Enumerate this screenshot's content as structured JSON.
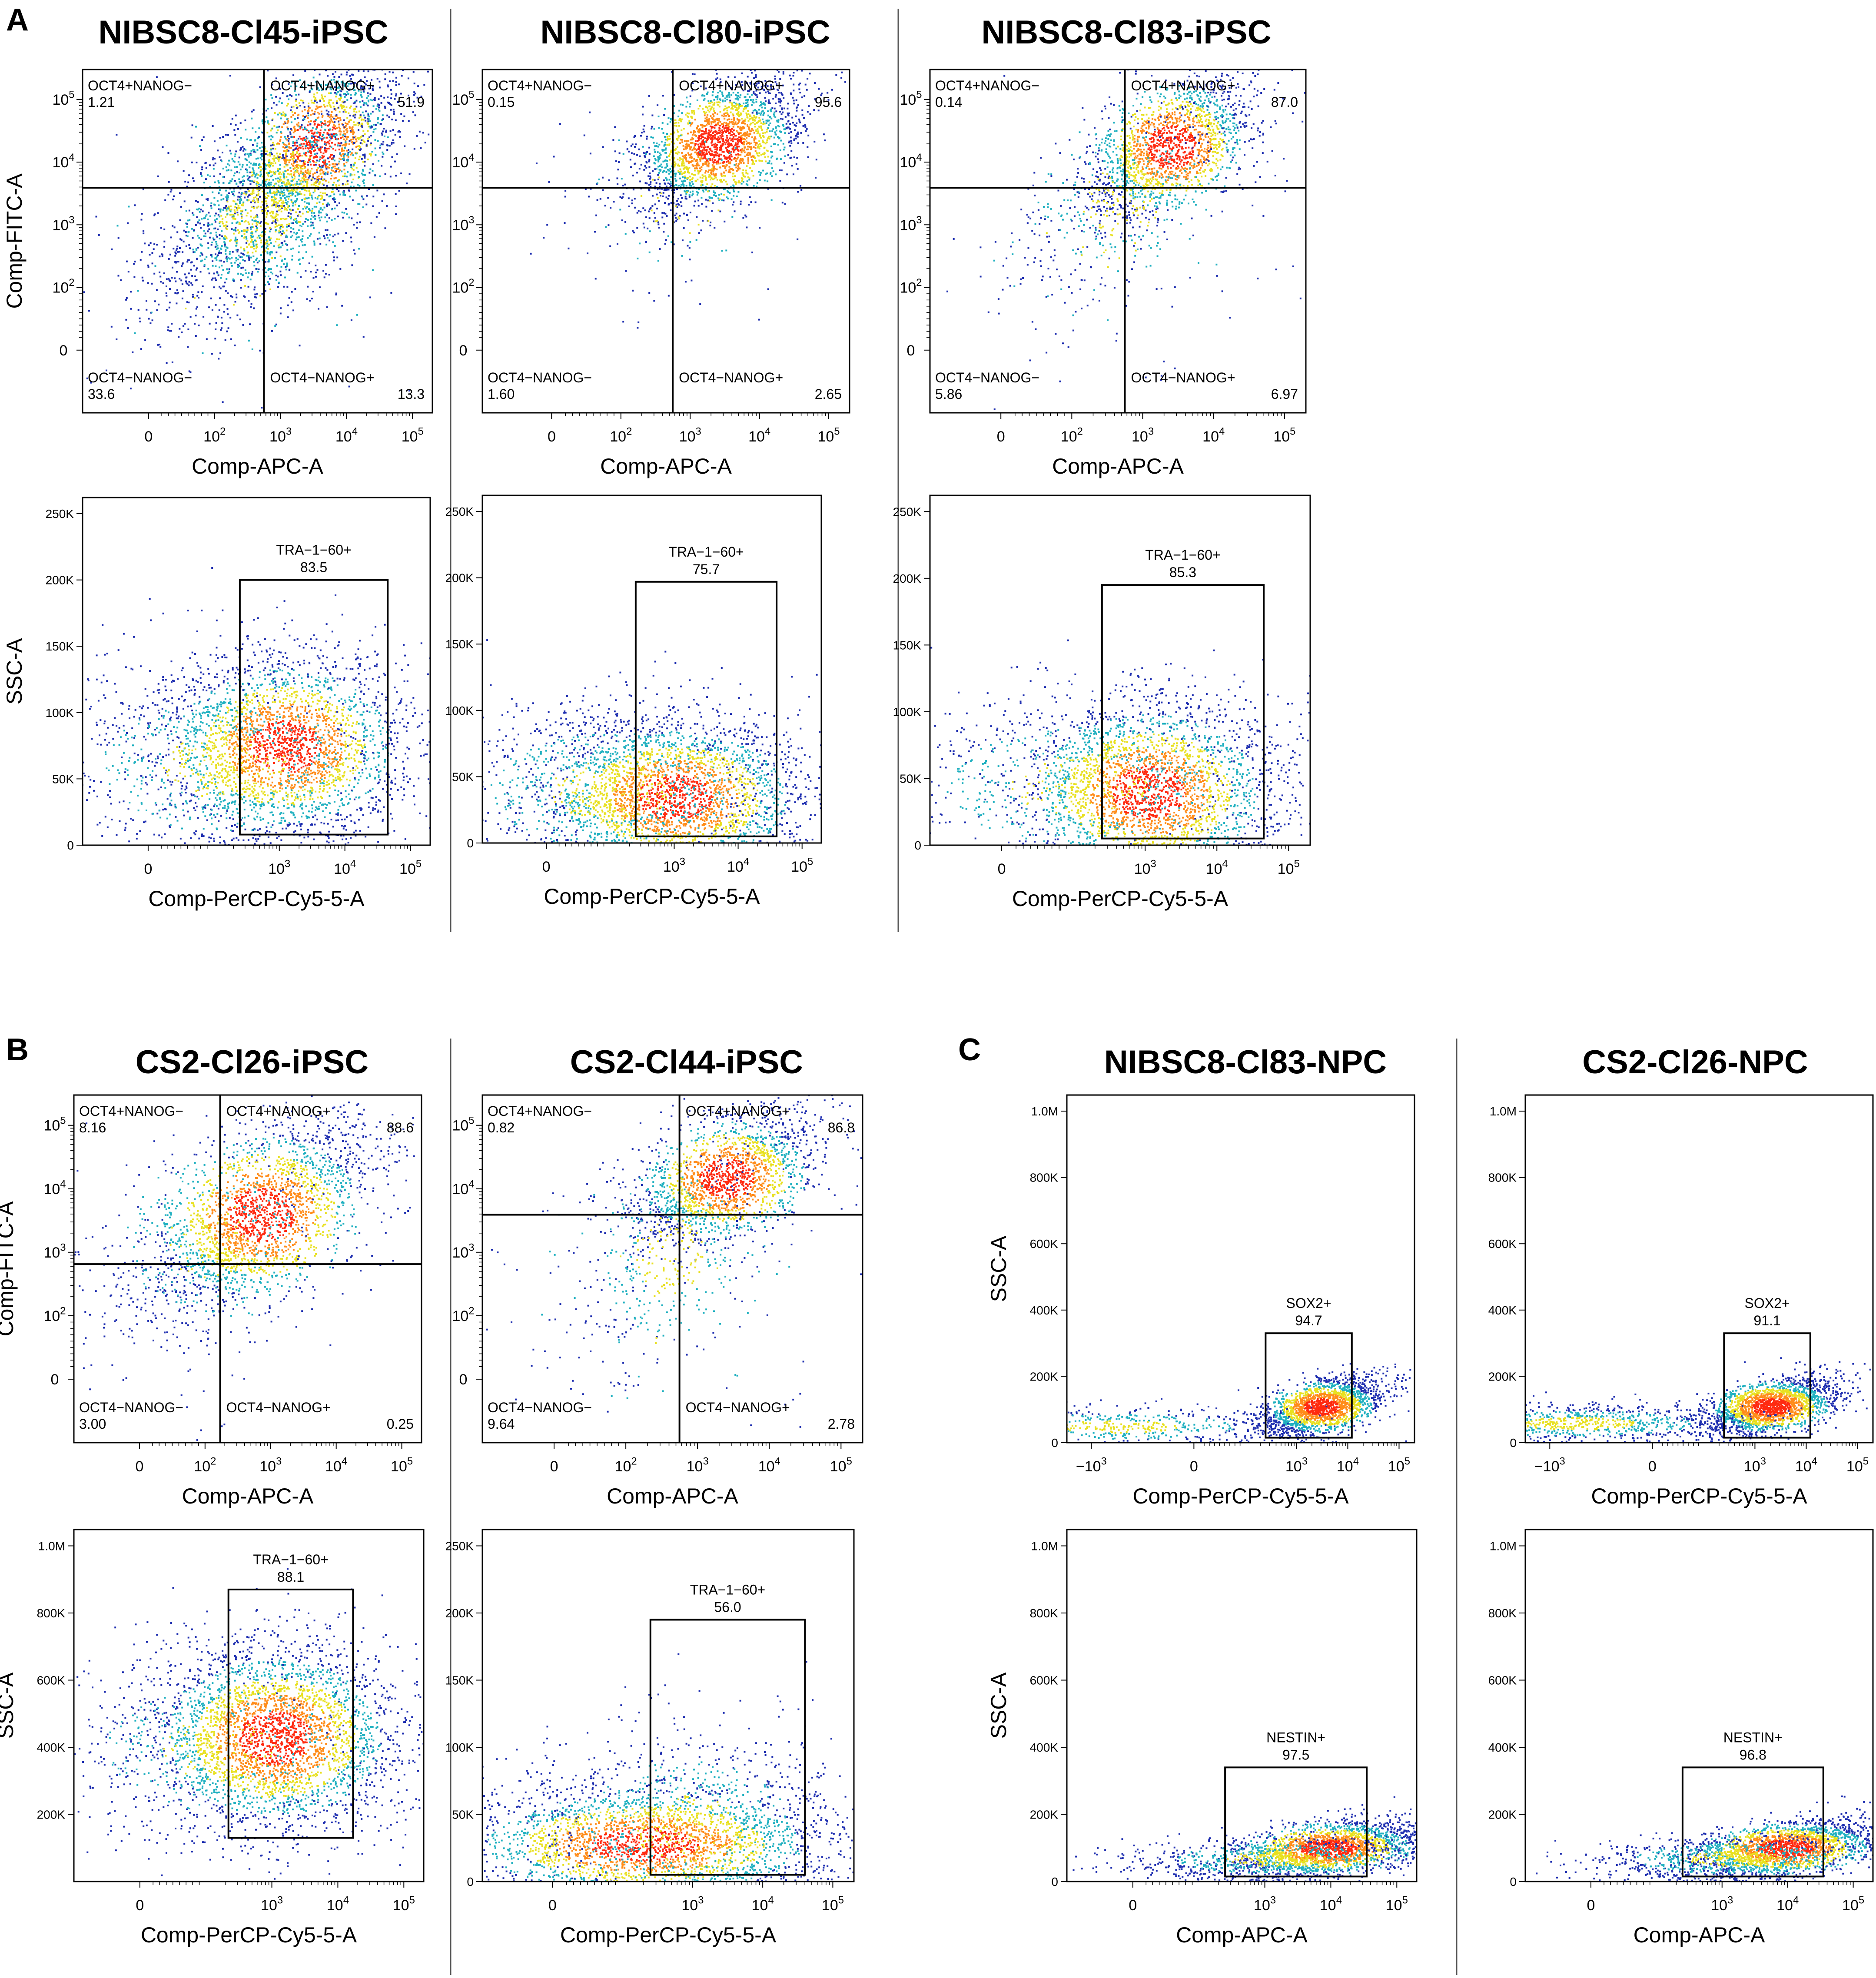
{
  "figure": {
    "panel_letters": [
      "A",
      "B",
      "C"
    ],
    "colors": {
      "density_low": "#1f2fb0",
      "density_mid": "#20b0c0",
      "density_high1": "#e8e020",
      "density_high2": "#ff2a10",
      "frame": "#000000"
    }
  },
  "chart_data": [
    {
      "id": "A1q",
      "type": "scatter",
      "column_title": "NIBSC8-Cl45-iPSC",
      "xlabel": "Comp-APC-A",
      "ylabel": "Comp-FITC-A",
      "x_scale": "biexponential",
      "y_scale": "biexponential",
      "xlim": [
        -100,
        200000
      ],
      "ylim": [
        -100,
        300000
      ],
      "x_ticks": [
        "0",
        "10^2",
        "10^3",
        "10^4",
        "10^5"
      ],
      "y_ticks": [
        "0",
        "10^2",
        "10^3",
        "10^4",
        "10^5"
      ],
      "gate_x": 560,
      "gate_y": 3900,
      "quadrants": [
        {
          "label": "OCT4+NANOG−",
          "value": "1.21",
          "pos": "top-left"
        },
        {
          "label": "OCT4+NANOG+",
          "value": "51.9",
          "pos": "top-right"
        },
        {
          "label": "OCT4−NANOG−",
          "value": "33.6",
          "pos": "bottom-left"
        },
        {
          "label": "OCT4−NANOG+",
          "value": "13.3",
          "pos": "bottom-right"
        }
      ],
      "clusters": [
        {
          "x": 3500,
          "y": 20000,
          "n": 1400,
          "sx": 0.22,
          "sy": 0.22,
          "rho": 0.55
        },
        {
          "x": 400,
          "y": 1200,
          "n": 1100,
          "sx": 0.28,
          "sy": 0.28,
          "rho": 0.5
        },
        {
          "x": 1200,
          "y": 4000,
          "n": 900,
          "sx": 0.32,
          "sy": 0.32,
          "rho": 0.6
        },
        {
          "x": 200,
          "y": 300,
          "n": 60,
          "sx": 0.6,
          "sy": 0.6,
          "rho": 0.0
        }
      ]
    },
    {
      "id": "A2q",
      "type": "scatter",
      "column_title": "NIBSC8-Cl80-iPSC",
      "xlabel": "Comp-APC-A",
      "ylabel": "",
      "x_scale": "biexponential",
      "y_scale": "biexponential",
      "xlim": [
        -100,
        200000
      ],
      "ylim": [
        -100,
        300000
      ],
      "x_ticks": [
        "0",
        "10^2",
        "10^3",
        "10^4",
        "10^5"
      ],
      "y_ticks": [
        "0",
        "10^2",
        "10^3",
        "10^4",
        "10^5"
      ],
      "gate_x": 560,
      "gate_y": 3900,
      "quadrants": [
        {
          "label": "OCT4+NANOG−",
          "value": "0.15",
          "pos": "top-left"
        },
        {
          "label": "OCT4+NANOG+",
          "value": "95.6",
          "pos": "top-right"
        },
        {
          "label": "OCT4−NANOG−",
          "value": "1.60",
          "pos": "bottom-left"
        },
        {
          "label": "OCT4−NANOG+",
          "value": "2.65",
          "pos": "bottom-right"
        }
      ],
      "clusters": [
        {
          "x": 2500,
          "y": 20000,
          "n": 2200,
          "sx": 0.2,
          "sy": 0.18,
          "rho": 0.5
        },
        {
          "x": 800,
          "y": 3000,
          "n": 120,
          "sx": 0.35,
          "sy": 0.35,
          "rho": 0.3
        }
      ]
    },
    {
      "id": "A3q",
      "type": "scatter",
      "column_title": "NIBSC8-Cl83-iPSC",
      "xlabel": "Comp-APC-A",
      "ylabel": "",
      "x_scale": "biexponential",
      "y_scale": "biexponential",
      "xlim": [
        -100,
        200000
      ],
      "ylim": [
        -100,
        300000
      ],
      "x_ticks": [
        "0",
        "10^2",
        "10^3",
        "10^4",
        "10^5"
      ],
      "y_ticks": [
        "0",
        "10^2",
        "10^3",
        "10^4",
        "10^5"
      ],
      "gate_x": 560,
      "gate_y": 3900,
      "quadrants": [
        {
          "label": "OCT4+NANOG−",
          "value": "0.14",
          "pos": "top-left"
        },
        {
          "label": "OCT4+NANOG+",
          "value": "87.0",
          "pos": "top-right"
        },
        {
          "label": "OCT4−NANOG−",
          "value": "5.86",
          "pos": "bottom-left"
        },
        {
          "label": "OCT4−NANOG+",
          "value": "6.97",
          "pos": "bottom-right"
        }
      ],
      "clusters": [
        {
          "x": 2500,
          "y": 18000,
          "n": 1800,
          "sx": 0.2,
          "sy": 0.2,
          "rho": 0.55
        },
        {
          "x": 500,
          "y": 2500,
          "n": 400,
          "sx": 0.3,
          "sy": 0.3,
          "rho": 0.6
        },
        {
          "x": 300,
          "y": 800,
          "n": 80,
          "sx": 0.45,
          "sy": 0.45,
          "rho": 0.2
        }
      ]
    },
    {
      "id": "A1g",
      "type": "scatter",
      "column_title": "NIBSC8-Cl45-iPSC",
      "xlabel": "Comp-PerCP-Cy5-5-A",
      "ylabel": "SSC-A",
      "x_scale": "biexponential",
      "y_scale": "linear",
      "xlim": [
        -100,
        200000
      ],
      "ylim": [
        0,
        262144
      ],
      "x_ticks": [
        "0",
        "10^3",
        "10^4",
        "10^5"
      ],
      "y_ticks": [
        "0",
        "50K",
        "100K",
        "150K",
        "200K",
        "250K"
      ],
      "y_tick_values": [
        0,
        50000,
        100000,
        150000,
        200000,
        250000
      ],
      "gate_box": {
        "label": "TRA−1−60+",
        "value": "83.5",
        "x0": 250,
        "x1": 45000,
        "y0": 8000,
        "y1": 200000
      },
      "clusters": [
        {
          "x": 1200,
          "y": 75000,
          "n": 2600,
          "sx": 0.32,
          "sy": 35000,
          "rho": 0
        },
        {
          "x": 150,
          "y": 60000,
          "n": 900,
          "sx": 0.5,
          "sy": 40000,
          "rho": 0
        }
      ]
    },
    {
      "id": "A2g",
      "type": "scatter",
      "column_title": "NIBSC8-Cl80-iPSC",
      "xlabel": "Comp-PerCP-Cy5-5-A",
      "ylabel": "",
      "x_scale": "biexponential",
      "y_scale": "linear",
      "xlim": [
        -100,
        200000
      ],
      "ylim": [
        0,
        262144
      ],
      "x_ticks": [
        "0",
        "10^3",
        "10^4",
        "10^5"
      ],
      "y_ticks": [
        "0",
        "50K",
        "100K",
        "150K",
        "200K",
        "250K"
      ],
      "y_tick_values": [
        0,
        50000,
        100000,
        150000,
        200000,
        250000
      ],
      "gate_box": {
        "label": "TRA−1−60+",
        "value": "75.7",
        "x0": 250,
        "x1": 40000,
        "y0": 5000,
        "y1": 197000
      },
      "clusters": [
        {
          "x": 1000,
          "y": 35000,
          "n": 2600,
          "sx": 0.35,
          "sy": 30000,
          "rho": 0
        },
        {
          "x": 100,
          "y": 40000,
          "n": 1000,
          "sx": 0.5,
          "sy": 35000,
          "rho": 0
        }
      ]
    },
    {
      "id": "A3g",
      "type": "scatter",
      "column_title": "NIBSC8-Cl83-iPSC",
      "xlabel": "Comp-PerCP-Cy5-5-A",
      "ylabel": "",
      "x_scale": "biexponential",
      "y_scale": "linear",
      "xlim": [
        -100,
        200000
      ],
      "ylim": [
        0,
        262144
      ],
      "x_ticks": [
        "0",
        "10^3",
        "10^4",
        "10^5"
      ],
      "y_ticks": [
        "0",
        "50K",
        "100K",
        "150K",
        "200K",
        "250K"
      ],
      "y_tick_values": [
        0,
        50000,
        100000,
        150000,
        200000,
        250000
      ],
      "gate_box": {
        "label": "TRA−1−60+",
        "value": "85.3",
        "x0": 250,
        "x1": 45000,
        "y0": 5000,
        "y1": 195000
      },
      "clusters": [
        {
          "x": 1100,
          "y": 40000,
          "n": 2700,
          "sx": 0.3,
          "sy": 35000,
          "rho": 0
        },
        {
          "x": 120,
          "y": 45000,
          "n": 800,
          "sx": 0.5,
          "sy": 35000,
          "rho": 0
        }
      ]
    },
    {
      "id": "B1q",
      "type": "scatter",
      "column_title": "CS2-Cl26-iPSC",
      "xlabel": "Comp-APC-A",
      "ylabel": "Comp-FITC-A",
      "x_scale": "biexponential",
      "y_scale": "biexponential",
      "xlim": [
        -100,
        200000
      ],
      "ylim": [
        -100,
        300000
      ],
      "x_ticks": [
        "0",
        "10^2",
        "10^3",
        "10^4",
        "10^5"
      ],
      "y_ticks": [
        "0",
        "10^2",
        "10^3",
        "10^4",
        "10^5"
      ],
      "gate_x": 170,
      "gate_y": 650,
      "quadrants": [
        {
          "label": "OCT4+NANOG−",
          "value": "8.16",
          "pos": "top-left"
        },
        {
          "label": "OCT4+NANOG+",
          "value": "88.6",
          "pos": "top-right"
        },
        {
          "label": "OCT4−NANOG−",
          "value": "3.00",
          "pos": "bottom-left"
        },
        {
          "label": "OCT4−NANOG+",
          "value": "0.25",
          "pos": "bottom-right"
        }
      ],
      "clusters": [
        {
          "x": 700,
          "y": 4000,
          "n": 2200,
          "sx": 0.3,
          "sy": 0.25,
          "rho": 0.6
        },
        {
          "x": 120,
          "y": 1500,
          "n": 400,
          "sx": 0.35,
          "sy": 0.35,
          "rho": 0.3
        }
      ]
    },
    {
      "id": "B2q",
      "type": "scatter",
      "column_title": "CS2-Cl44-iPSC",
      "xlabel": "Comp-APC-A",
      "ylabel": "",
      "x_scale": "biexponential",
      "y_scale": "biexponential",
      "xlim": [
        -100,
        200000
      ],
      "ylim": [
        -100,
        300000
      ],
      "x_ticks": [
        "0",
        "10^2",
        "10^3",
        "10^4",
        "10^5"
      ],
      "y_ticks": [
        "0",
        "10^2",
        "10^3",
        "10^4",
        "10^5"
      ],
      "gate_x": 560,
      "gate_y": 3900,
      "quadrants": [
        {
          "label": "OCT4+NANOG−",
          "value": "0.82",
          "pos": "top-left"
        },
        {
          "label": "OCT4+NANOG+",
          "value": "86.8",
          "pos": "top-right"
        },
        {
          "label": "OCT4−NANOG−",
          "value": "9.64",
          "pos": "bottom-left"
        },
        {
          "label": "OCT4−NANOG+",
          "value": "2.78",
          "pos": "bottom-right"
        }
      ],
      "clusters": [
        {
          "x": 2500,
          "y": 15000,
          "n": 1800,
          "sx": 0.22,
          "sy": 0.18,
          "rho": 0.5
        },
        {
          "x": 400,
          "y": 1000,
          "n": 450,
          "sx": 0.25,
          "sy": 0.35,
          "rho": 0.5
        },
        {
          "x": 300,
          "y": 300,
          "n": 60,
          "sx": 0.5,
          "sy": 0.5,
          "rho": 0
        }
      ]
    },
    {
      "id": "B1g",
      "type": "scatter",
      "column_title": "CS2-Cl26-iPSC",
      "xlabel": "Comp-PerCP-Cy5-5-A",
      "ylabel": "SSC-A",
      "x_scale": "biexponential",
      "y_scale": "linear",
      "xlim": [
        -100,
        200000
      ],
      "ylim": [
        0,
        1048576
      ],
      "x_ticks": [
        "0",
        "10^3",
        "10^4",
        "10^5"
      ],
      "y_ticks": [
        "200K",
        "400K",
        "600K",
        "800K",
        "1.0M"
      ],
      "y_tick_values": [
        200000,
        400000,
        600000,
        800000,
        1000000
      ],
      "gate_box": {
        "label": "TRA−1−60+",
        "value": "88.1",
        "x0": 220,
        "x1": 17000,
        "y0": 130000,
        "y1": 870000
      },
      "clusters": [
        {
          "x": 1100,
          "y": 430000,
          "n": 3200,
          "sx": 0.32,
          "sy": 140000,
          "rho": 0
        },
        {
          "x": 150,
          "y": 400000,
          "n": 500,
          "sx": 0.45,
          "sy": 150000,
          "rho": 0
        }
      ]
    },
    {
      "id": "B2g",
      "type": "scatter",
      "column_title": "CS2-Cl44-iPSC",
      "xlabel": "Comp-PerCP-Cy5-5-A",
      "ylabel": "",
      "x_scale": "biexponential",
      "y_scale": "linear",
      "xlim": [
        -100,
        200000
      ],
      "ylim": [
        0,
        262144
      ],
      "x_ticks": [
        "0",
        "10^3",
        "10^4",
        "10^5"
      ],
      "y_ticks": [
        "0",
        "50K",
        "100K",
        "150K",
        "200K",
        "250K"
      ],
      "y_tick_values": [
        0,
        50000,
        100000,
        150000,
        200000,
        250000
      ],
      "gate_box": {
        "label": "TRA−1−60+",
        "value": "56.0",
        "x0": 250,
        "x1": 40000,
        "y0": 5000,
        "y1": 195000
      },
      "clusters": [
        {
          "x": 200,
          "y": 28000,
          "n": 2600,
          "sx": 0.45,
          "sy": 22000,
          "rho": 0
        },
        {
          "x": 800,
          "y": 40000,
          "n": 1000,
          "sx": 0.4,
          "sy": 40000,
          "rho": 0
        }
      ]
    },
    {
      "id": "C1s",
      "type": "scatter",
      "column_title": "NIBSC8-Cl83-NPC",
      "xlabel": "Comp-PerCP-Cy5-5-A",
      "ylabel": "SSC-A",
      "x_scale": "biexponential",
      "y_scale": "linear",
      "xlim": [
        -3000,
        200000
      ],
      "ylim": [
        0,
        1048576
      ],
      "x_ticks": [
        "−10^3",
        "0",
        "10^3",
        "10^4",
        "10^5"
      ],
      "y_ticks": [
        "0",
        "200K",
        "400K",
        "600K",
        "800K",
        "1.0M"
      ],
      "y_tick_values": [
        0,
        200000,
        400000,
        600000,
        800000,
        1000000
      ],
      "gate_box": {
        "label": "SOX2+",
        "value": "94.7",
        "x0": 250,
        "x1": 12000,
        "y0": 15000,
        "y1": 330000
      },
      "clusters": [
        {
          "x": 3000,
          "y": 110000,
          "n": 1900,
          "sx": 0.2,
          "sy": 45000,
          "rho": 0.5
        },
        {
          "x": -300,
          "y": 50000,
          "n": 600,
          "sx": 0.6,
          "sy": 30000,
          "rho": 0
        }
      ]
    },
    {
      "id": "C2s",
      "type": "scatter",
      "column_title": "CS2-Cl26-NPC",
      "xlabel": "Comp-PerCP-Cy5-5-A",
      "ylabel": "",
      "x_scale": "biexponential",
      "y_scale": "linear",
      "xlim": [
        -3000,
        200000
      ],
      "ylim": [
        0,
        1048576
      ],
      "x_ticks": [
        "−10^3",
        "0",
        "10^3",
        "10^4",
        "10^5"
      ],
      "y_ticks": [
        "0",
        "200K",
        "400K",
        "600K",
        "800K",
        "1.0M"
      ],
      "y_tick_values": [
        0,
        200000,
        400000,
        600000,
        800000,
        1000000
      ],
      "gate_box": {
        "label": "SOX2+",
        "value": "91.1",
        "x0": 250,
        "x1": 12000,
        "y0": 15000,
        "y1": 330000
      },
      "clusters": [
        {
          "x": 2000,
          "y": 110000,
          "n": 1900,
          "sx": 0.22,
          "sy": 45000,
          "rho": 0.5
        },
        {
          "x": -300,
          "y": 60000,
          "n": 900,
          "sx": 0.6,
          "sy": 30000,
          "rho": 0
        }
      ]
    },
    {
      "id": "C1n",
      "type": "scatter",
      "column_title": "NIBSC8-Cl83-NPC",
      "xlabel": "Comp-APC-A",
      "ylabel": "SSC-A",
      "x_scale": "biexponential",
      "y_scale": "linear",
      "xlim": [
        -100,
        200000
      ],
      "ylim": [
        0,
        1048576
      ],
      "x_ticks": [
        "0",
        "10^3",
        "10^4",
        "10^5"
      ],
      "y_ticks": [
        "0",
        "200K",
        "400K",
        "600K",
        "800K",
        "1.0M"
      ],
      "y_tick_values": [
        0,
        200000,
        400000,
        600000,
        800000,
        1000000
      ],
      "gate_box": {
        "label": "NESTIN+",
        "value": "97.5",
        "x0": 250,
        "x1": 35000,
        "y0": 15000,
        "y1": 340000
      },
      "clusters": [
        {
          "x": 9000,
          "y": 100000,
          "n": 2000,
          "sx": 0.25,
          "sy": 45000,
          "rho": 0.5
        },
        {
          "x": 1500,
          "y": 70000,
          "n": 800,
          "sx": 0.4,
          "sy": 35000,
          "rho": 0.3
        }
      ]
    },
    {
      "id": "C2n",
      "type": "scatter",
      "column_title": "CS2-Cl26-NPC",
      "xlabel": "Comp-APC-A",
      "ylabel": "",
      "x_scale": "biexponential",
      "y_scale": "linear",
      "xlim": [
        -100,
        200000
      ],
      "ylim": [
        0,
        1048576
      ],
      "x_ticks": [
        "0",
        "10^3",
        "10^4",
        "10^5"
      ],
      "y_ticks": [
        "0",
        "200K",
        "400K",
        "600K",
        "800K",
        "1.0M"
      ],
      "y_tick_values": [
        0,
        200000,
        400000,
        600000,
        800000,
        1000000
      ],
      "gate_box": {
        "label": "NESTIN+",
        "value": "96.8",
        "x0": 250,
        "x1": 35000,
        "y0": 15000,
        "y1": 340000
      },
      "clusters": [
        {
          "x": 9000,
          "y": 100000,
          "n": 2000,
          "sx": 0.25,
          "sy": 45000,
          "rho": 0.5
        },
        {
          "x": 1500,
          "y": 70000,
          "n": 800,
          "sx": 0.4,
          "sy": 35000,
          "rho": 0.3
        }
      ]
    }
  ]
}
